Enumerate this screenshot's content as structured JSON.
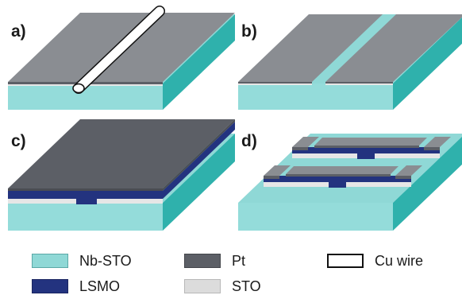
{
  "panels": {
    "a": "a)",
    "b": "b)",
    "c": "c)",
    "d": "d)"
  },
  "legend": [
    {
      "label": "Nb-STO",
      "color": "#8fd8d6",
      "border": "#5aa8a6"
    },
    {
      "label": "Pt",
      "color": "#5c5f66",
      "border": "#44464b"
    },
    {
      "label": "Cu wire",
      "color": "#ffffff",
      "border": "#111111"
    },
    {
      "label": "LSMO",
      "color": "#23337f",
      "border": "#1a2560"
    },
    {
      "label": "STO",
      "color": "#dcdcdc",
      "border": "#b8b8b8"
    }
  ],
  "colors": {
    "substrate_top": "#8fd8d6",
    "substrate_front": "#94dcda",
    "substrate_side": "#2fb1ac",
    "pt_top": "#8a8d92",
    "pt_front": "#5c5f66",
    "lsmo": "#23337f",
    "sto": "#e6e6e6"
  }
}
